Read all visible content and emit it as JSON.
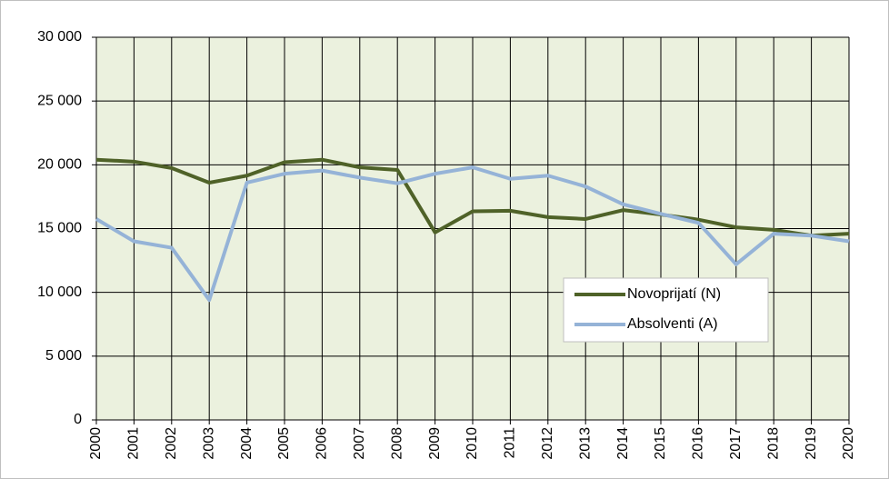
{
  "chart_data": {
    "type": "line",
    "categories": [
      "2000",
      "2001",
      "2002",
      "2003",
      "2004",
      "2005",
      "2006",
      "2007",
      "2008",
      "2009",
      "2010",
      "2011",
      "2012",
      "2013",
      "2014",
      "2015",
      "2016",
      "2017",
      "2018",
      "2019",
      "2020"
    ],
    "series": [
      {
        "name": "Novoprijatí (N)",
        "color": "#4f6228",
        "values": [
          20400,
          20250,
          19750,
          18600,
          19150,
          20200,
          20400,
          19800,
          19600,
          14700,
          16350,
          16400,
          15900,
          15750,
          16450,
          16100,
          15700,
          15100,
          14900,
          14450,
          14600
        ]
      },
      {
        "name": "Absolventi (A)",
        "color": "#95b3d7",
        "values": [
          15750,
          14000,
          13500,
          9400,
          18600,
          19300,
          19550,
          19000,
          18550,
          19300,
          19800,
          18900,
          19150,
          18300,
          16900,
          16150,
          15450,
          12200,
          14600,
          14450,
          14000
        ]
      }
    ],
    "ylim": [
      0,
      30000
    ],
    "yticks": [
      0,
      {
        "value": 5000,
        "label": "5 000"
      },
      {
        "value": 10000,
        "label": "10 000"
      },
      {
        "value": 15000,
        "label": "15 000"
      },
      {
        "value": 20000,
        "label": "20 000"
      },
      {
        "value": 25000,
        "label": "25 000"
      },
      {
        "value": 30000,
        "label": "30 000"
      }
    ],
    "grid": true,
    "legend": "right"
  }
}
